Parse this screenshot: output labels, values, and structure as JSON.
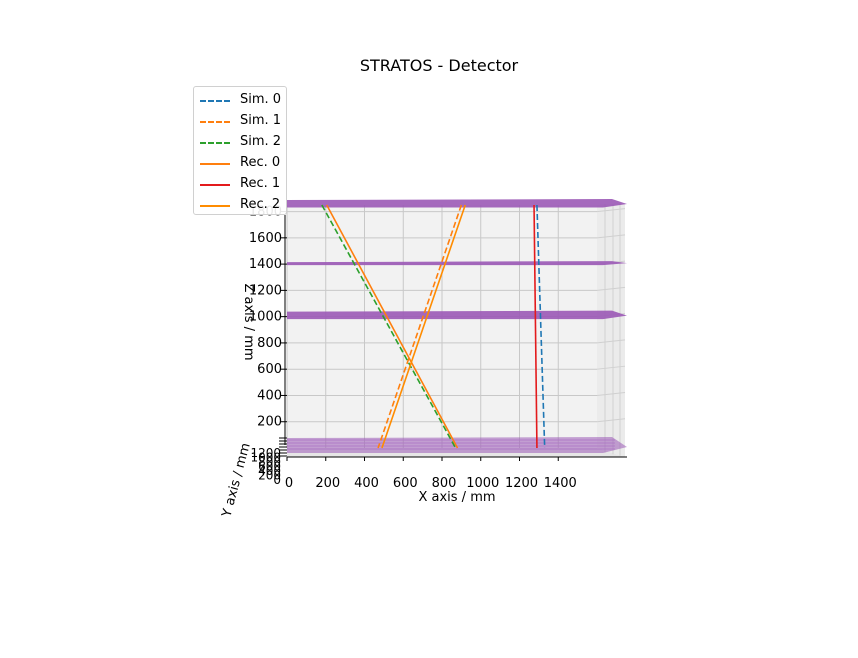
{
  "chart_data": {
    "type": "line",
    "title": "STRATOS - Detector",
    "xlabel": "X axis / mm",
    "ylabel": "Y axis / mm",
    "zlabel": "Z axis / mm",
    "xlim": [
      0,
      1600
    ],
    "zlim": [
      0,
      1850
    ],
    "x_ticks": [
      "0",
      "200",
      "400",
      "600",
      "800",
      "1000",
      "1200",
      "1400"
    ],
    "z_ticks": [
      "200",
      "400",
      "600",
      "800",
      "1000",
      "1200",
      "1400",
      "1600",
      "1800"
    ],
    "y_ticks": [
      "0",
      "200",
      "400",
      "600",
      "800",
      "1000",
      "1200"
    ],
    "grid": true,
    "legend_position": "top-left",
    "detector_planes_z": [
      0,
      1000,
      1400,
      1850
    ],
    "plane_color": "#9b59b6",
    "series": [
      {
        "name": "Sim. 0",
        "style": "dashed",
        "color": "#1f77b4",
        "x": [
          1290,
          1330
        ],
        "z": [
          1850,
          0
        ]
      },
      {
        "name": "Sim. 1",
        "style": "dashed",
        "color": "#ff7f0e",
        "x": [
          900,
          470
        ],
        "z": [
          1850,
          0
        ]
      },
      {
        "name": "Sim. 2",
        "style": "dashed",
        "color": "#2ca02c",
        "x": [
          180,
          870
        ],
        "z": [
          1850,
          0
        ]
      },
      {
        "name": "Rec. 0",
        "style": "solid",
        "color": "#ff7f0e",
        "x": [
          205,
          880
        ],
        "z": [
          1850,
          0
        ]
      },
      {
        "name": "Rec. 1",
        "style": "solid",
        "color": "#e31a1c",
        "x": [
          1275,
          1290
        ],
        "z": [
          1850,
          0
        ]
      },
      {
        "name": "Rec. 2",
        "style": "solid",
        "color": "#ff8c00",
        "x": [
          920,
          490
        ],
        "z": [
          1850,
          0
        ]
      }
    ]
  }
}
